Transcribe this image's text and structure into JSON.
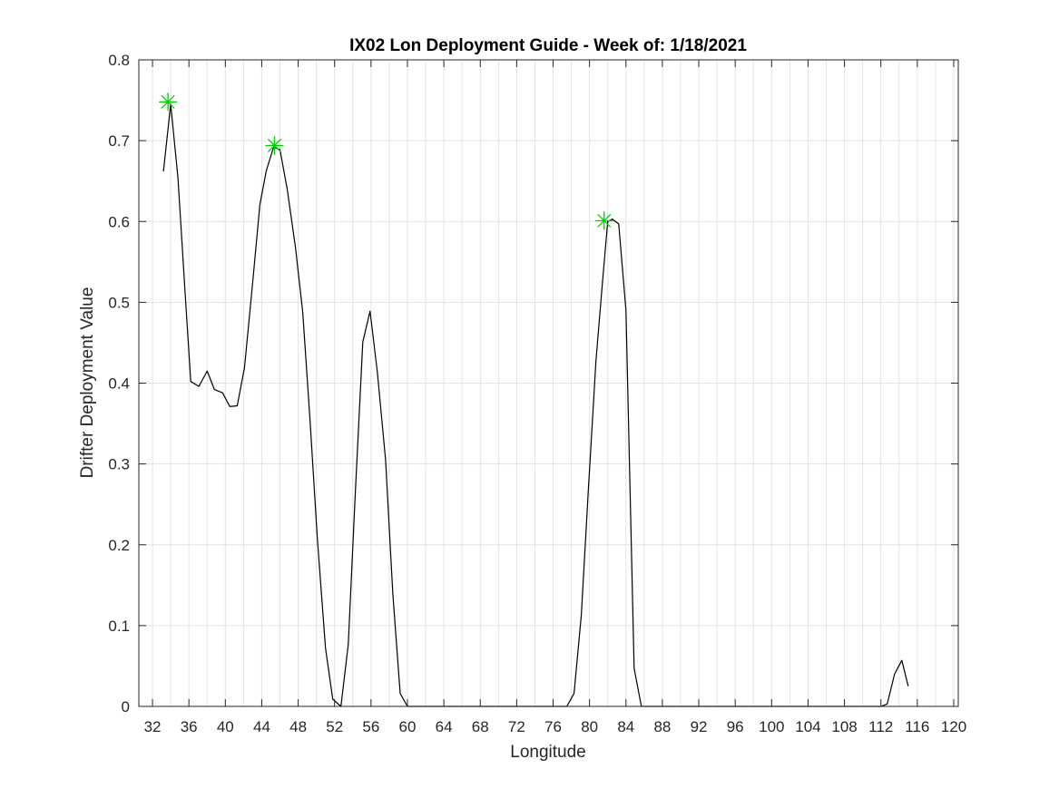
{
  "chart_data": {
    "type": "line",
    "title": "IX02 Lon Deployment Guide - Week of: 1/18/2021",
    "xlabel": "Longitude",
    "ylabel": "Drifter Deployment Value",
    "xlim": [
      30.5,
      120.5
    ],
    "ylim": [
      0,
      0.8
    ],
    "x_ticks": [
      32,
      36,
      40,
      44,
      48,
      52,
      56,
      60,
      64,
      68,
      72,
      76,
      80,
      84,
      88,
      92,
      96,
      100,
      104,
      108,
      112,
      116,
      120
    ],
    "y_ticks": [
      0,
      0.1,
      0.2,
      0.3,
      0.4,
      0.5,
      0.6,
      0.7,
      0.8
    ],
    "x_tick_labels": [
      "32",
      "36",
      "40",
      "44",
      "48",
      "52",
      "56",
      "60",
      "64",
      "68",
      "72",
      "76",
      "80",
      "84",
      "88",
      "92",
      "96",
      "100",
      "104",
      "108",
      "112",
      "116",
      "120"
    ],
    "y_tick_labels": [
      "0",
      "0.1",
      "0.2",
      "0.3",
      "0.4",
      "0.5",
      "0.6",
      "0.7",
      "0.8"
    ],
    "x_minor_grid_step": 2,
    "grid": true,
    "series": [
      {
        "color": "#000000",
        "x": [
          33.2,
          34.0,
          34.8,
          35.6,
          36.2,
          37.1,
          38.0,
          38.8,
          39.7,
          40.5,
          41.3,
          42.1,
          43.0,
          43.8,
          44.5,
          45.3,
          46.0,
          46.8,
          47.7,
          48.5,
          49.3,
          50.1,
          51.0,
          51.8,
          52.7,
          53.5,
          54.3,
          55.1,
          55.9,
          56.7,
          57.6,
          58.4,
          59.2,
          60.0,
          60.8,
          62.0,
          64.0,
          68.0,
          72.0,
          76.0,
          77.5,
          78.3,
          79.1,
          79.9,
          80.7,
          81.4,
          82.0,
          82.5,
          83.2,
          84.0,
          84.9,
          85.7,
          88.0,
          96.0,
          104.0,
          111.0,
          112.0,
          112.7,
          113.5,
          114.3,
          115.0
        ],
        "y": [
          0.662,
          0.745,
          0.654,
          0.508,
          0.402,
          0.396,
          0.415,
          0.392,
          0.388,
          0.371,
          0.372,
          0.419,
          0.524,
          0.621,
          0.663,
          0.692,
          0.689,
          0.64,
          0.568,
          0.488,
          0.355,
          0.208,
          0.072,
          0.009,
          0.0,
          0.077,
          0.27,
          0.451,
          0.489,
          0.413,
          0.305,
          0.139,
          0.016,
          0.0,
          0.0,
          0.0,
          0.0,
          0.0,
          0.0,
          0.0,
          0.0,
          0.016,
          0.113,
          0.273,
          0.427,
          0.522,
          0.6,
          0.603,
          0.597,
          0.49,
          0.047,
          0.0,
          0.0,
          0.0,
          0.0,
          0.0,
          0.0,
          0.003,
          0.04,
          0.057,
          0.025
        ]
      }
    ],
    "markers": {
      "symbol": "asterisk",
      "color": "#00cc00",
      "x": [
        33.7,
        45.4,
        81.6
      ],
      "y": [
        0.748,
        0.694,
        0.601
      ]
    }
  }
}
